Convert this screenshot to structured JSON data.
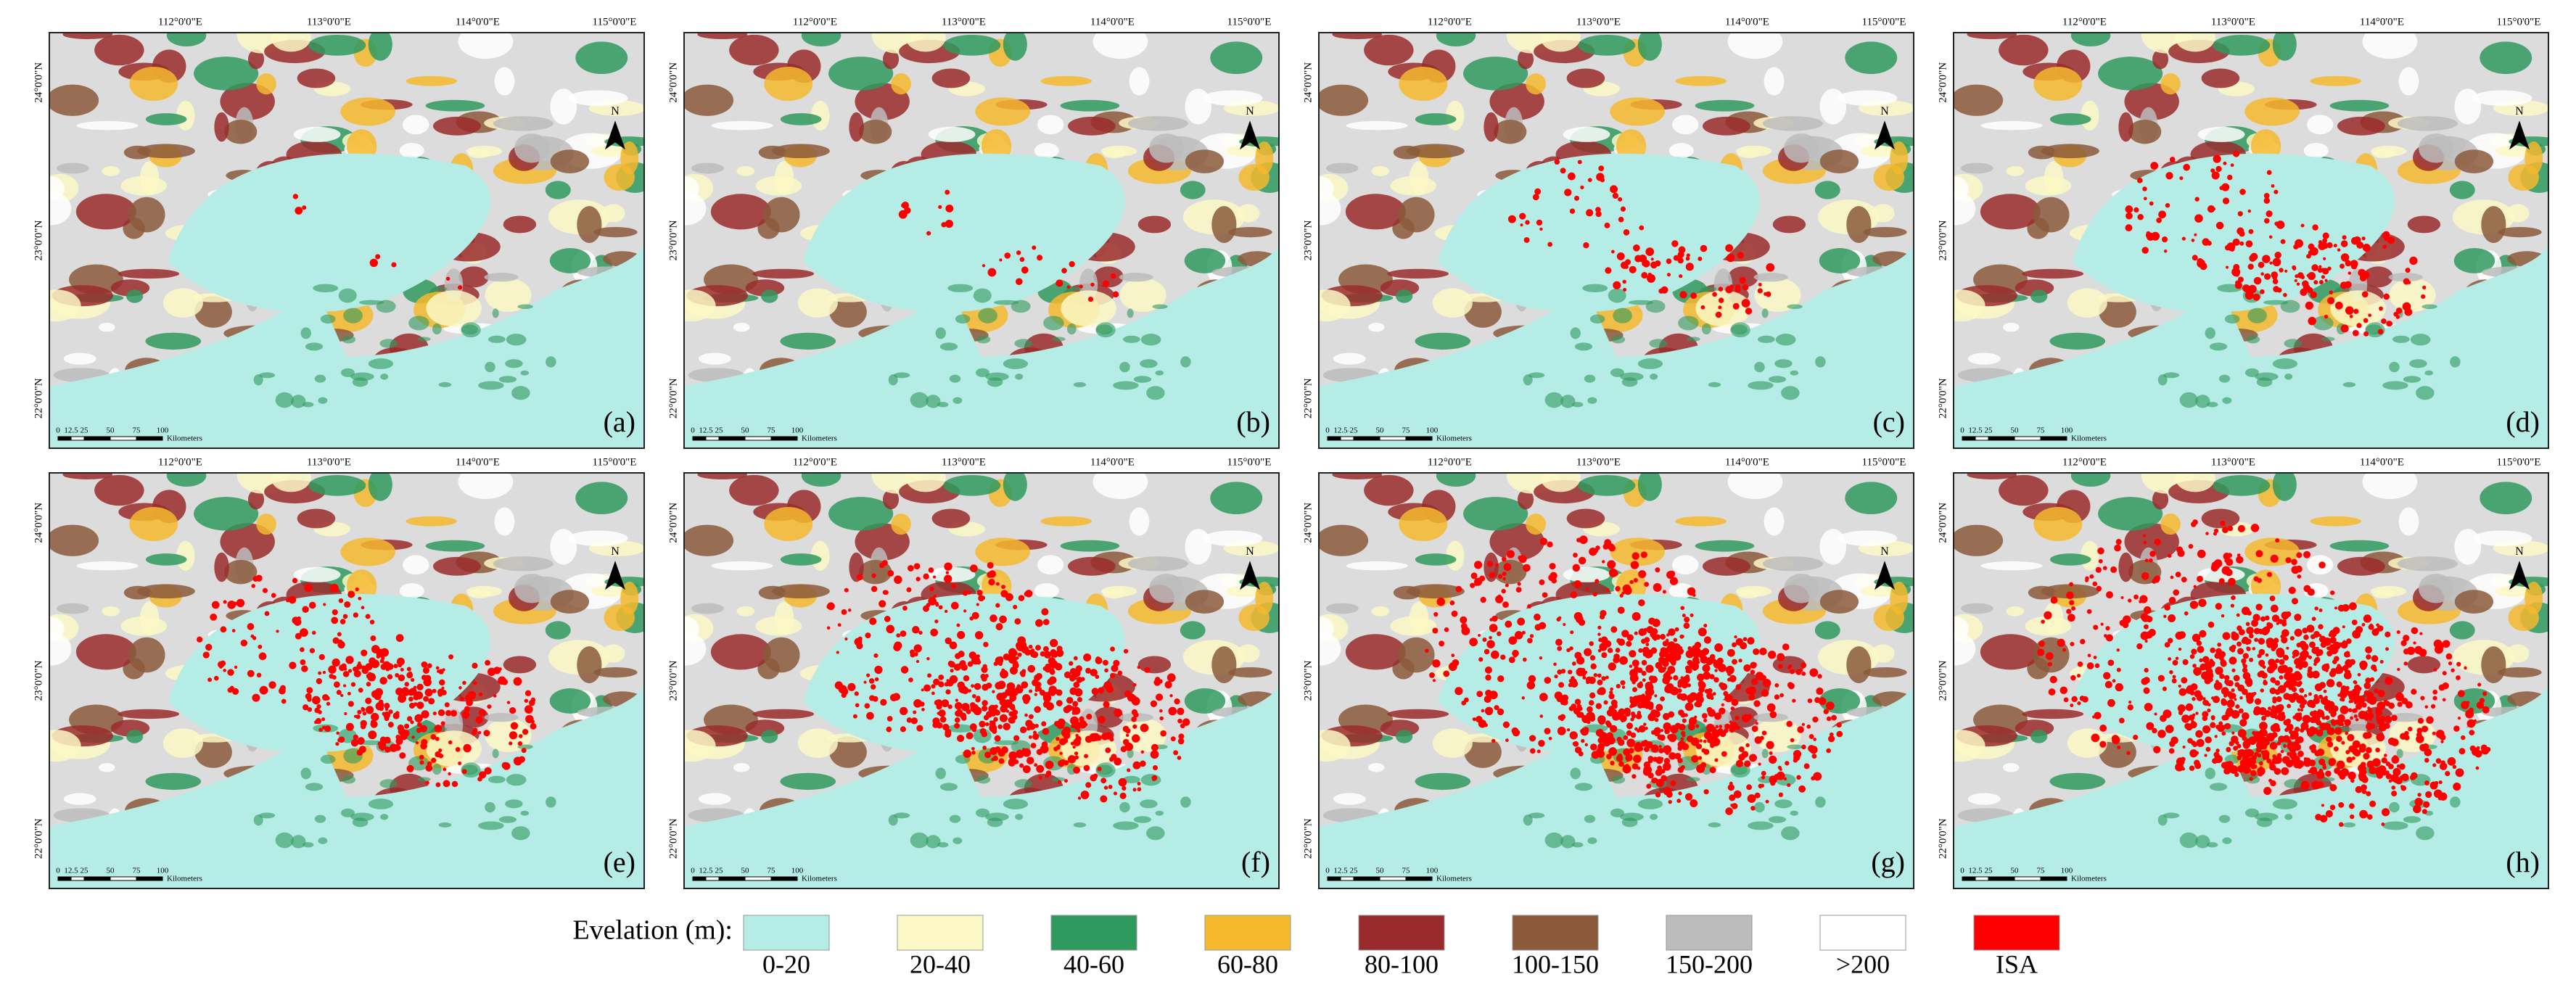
{
  "panels": [
    {
      "label": "(a)"
    },
    {
      "label": "(b)"
    },
    {
      "label": "(c)"
    },
    {
      "label": "(d)"
    },
    {
      "label": "(e)"
    },
    {
      "label": "(f)"
    },
    {
      "label": "(g)"
    },
    {
      "label": "(h)"
    }
  ],
  "map_frame": {
    "lon_labels": [
      "112°0'0\"E",
      "113°0'0\"E",
      "114°0'0\"E",
      "115°0'0\"E"
    ],
    "lat_labels": [
      "24°0'0\"N",
      "23°0'0\"N",
      "22°0'0\"N"
    ],
    "scale_labels": [
      "0",
      "12.5",
      "25",
      "50",
      "75",
      "100"
    ],
    "scale_unit": "Kilometers",
    "north": "N"
  },
  "legend": {
    "title": "Evelation (m):",
    "items": [
      {
        "label": "0-20",
        "color": "#b6ece6"
      },
      {
        "label": "20-40",
        "color": "#fcf8c6"
      },
      {
        "label": "40-60",
        "color": "#2f9a5e"
      },
      {
        "label": "60-80",
        "color": "#f5b82e"
      },
      {
        "label": "80-100",
        "color": "#9a2b2c"
      },
      {
        "label": "100-150",
        "color": "#8b5a3b"
      },
      {
        "label": "150-200",
        "color": "#bcbcbc"
      },
      {
        "label": ">200",
        "color": "#ffffff"
      },
      {
        "label": "ISA",
        "color": "#ff0000"
      }
    ]
  }
}
